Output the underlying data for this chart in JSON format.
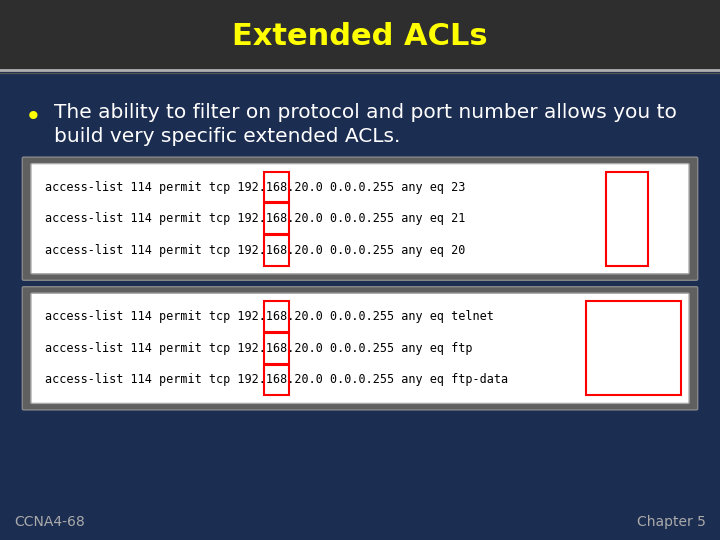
{
  "title": "Extended ACLs",
  "title_color": "#FFFF00",
  "title_fontsize": 22,
  "bg_color": "#1c2d52",
  "title_bar_color": "#2e2e2e",
  "bullet_text_line1": "The ability to filter on protocol and port number allows you to",
  "bullet_text_line2": "build very specific extended ACLs.",
  "bullet_color": "#FFFF00",
  "text_color": "#FFFFFF",
  "bullet_fontsize": 14.5,
  "box1_lines": [
    "access-list 114 permit tcp 192.168.20.0 0.0.0.255 any eq 23",
    "access-list 114 permit tcp 192.168.20.0 0.0.0.255 any eq 21",
    "access-list 114 permit tcp 192.168.20.0 0.0.0.255 any eq 20"
  ],
  "box2_lines": [
    "access-list 114 permit tcp 192.168.20.0 0.0.0.255 any eq telnet",
    "access-list 114 permit tcp 192.168.20.0 0.0.0.255 any eq ftp",
    "access-list 114 permit tcp 192.168.20.0 0.0.0.255 any eq ftp-data"
  ],
  "code_fontsize": 8.5,
  "footer_left": "CCNA4-68",
  "footer_right": "Chapter 5",
  "footer_color": "#AAAAAA",
  "footer_fontsize": 10,
  "divider_color": "#999999"
}
